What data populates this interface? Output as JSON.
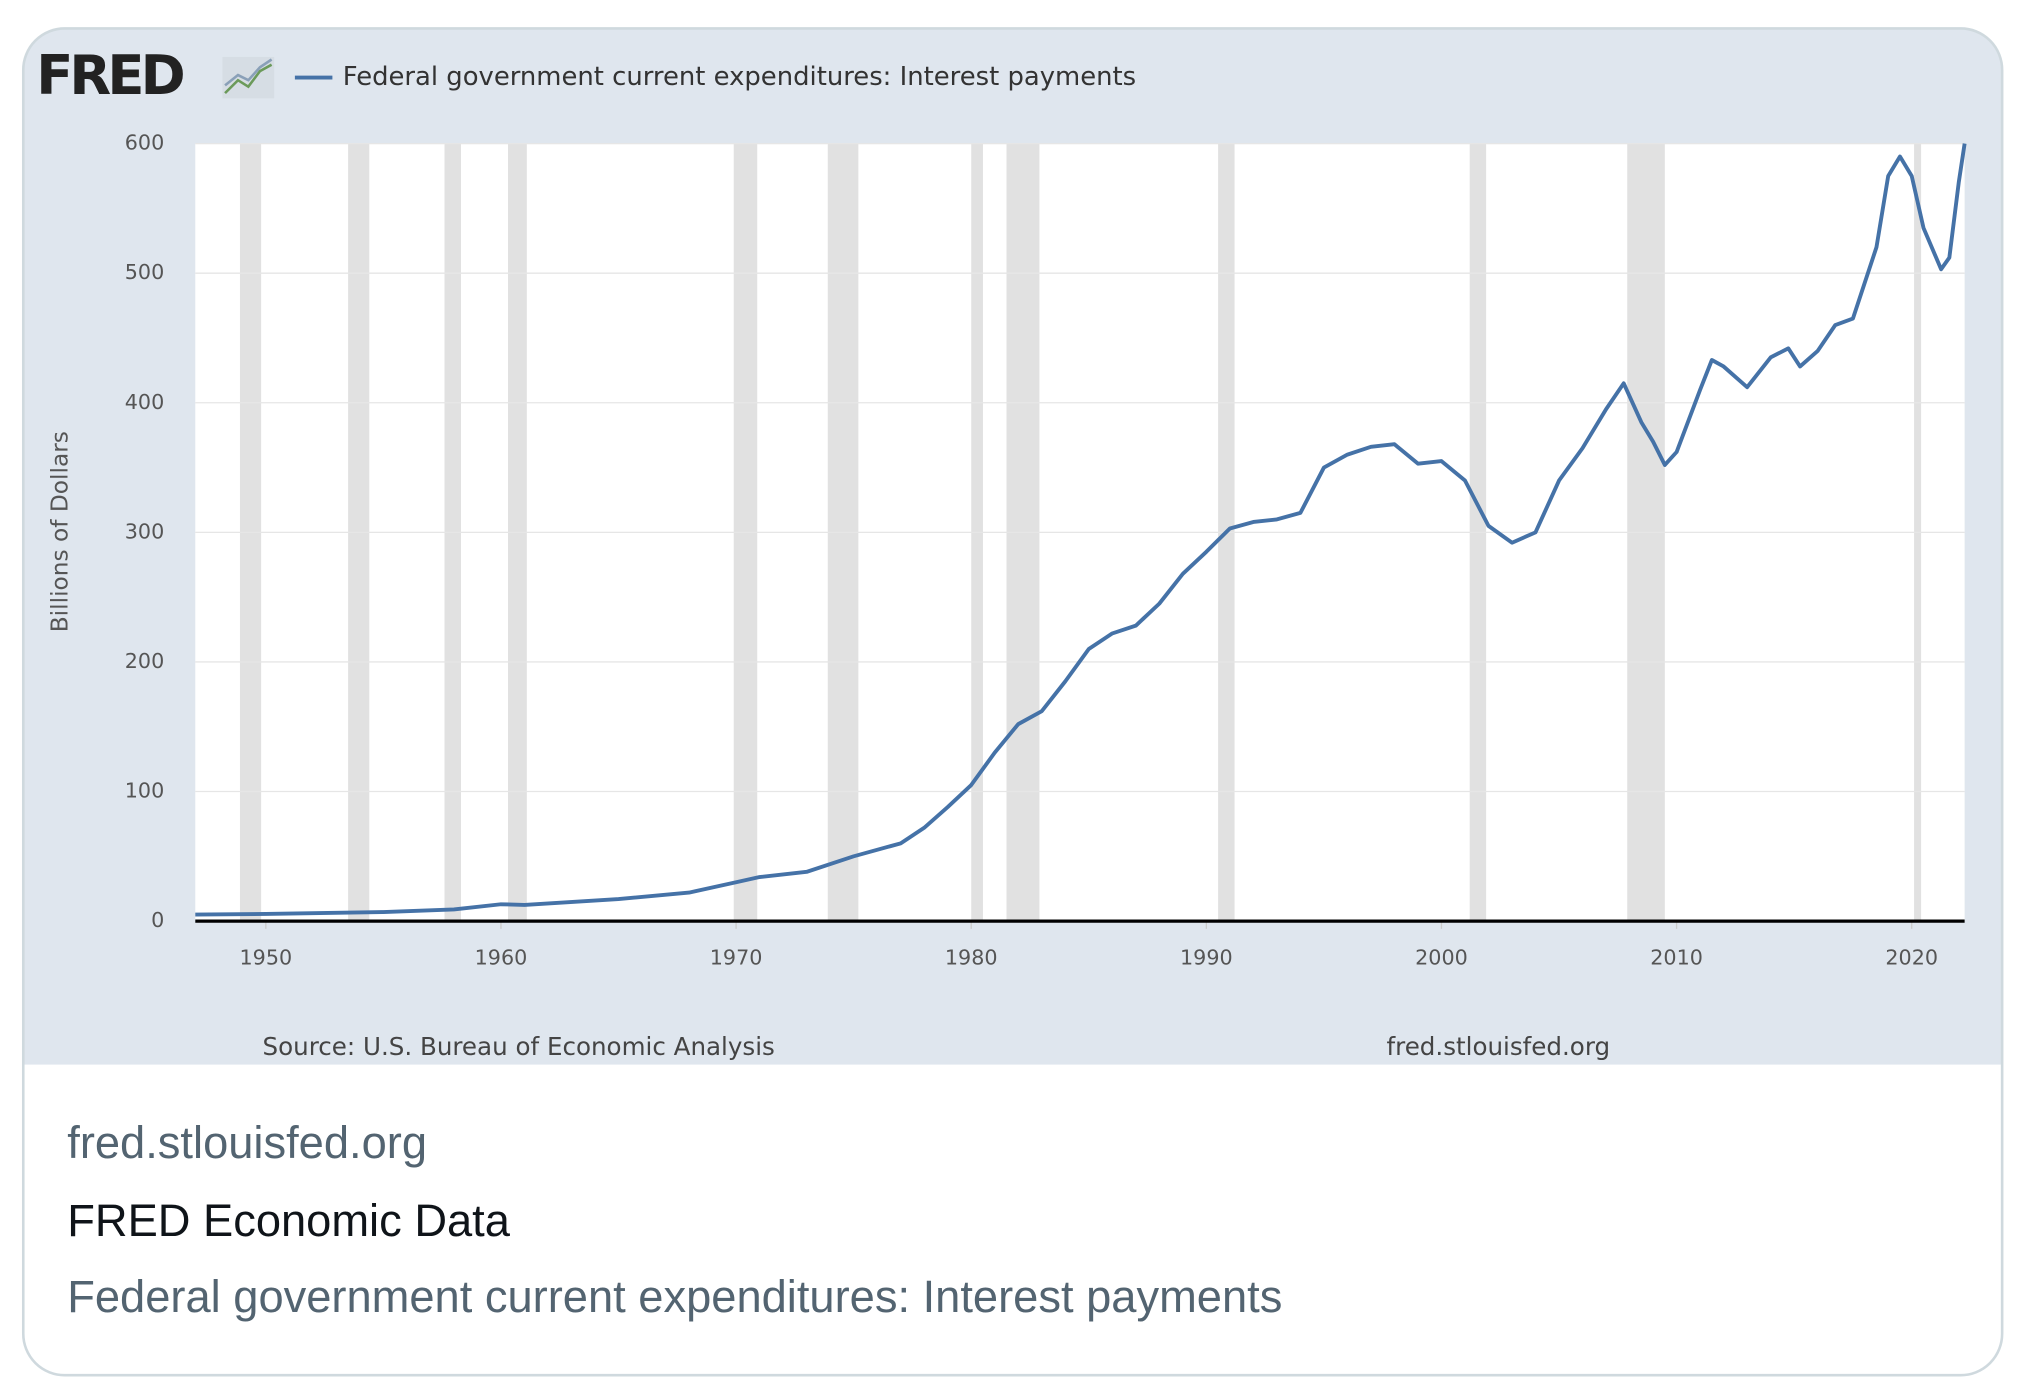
{
  "logo": "FRED",
  "chart_data": {
    "type": "line",
    "y_label": "Billions of Dollars",
    "source": "Source: U.S. Bureau of Economic Analysis",
    "watermark": "fred.stlouisfed.org",
    "x": [
      1947,
      1950,
      1955,
      1958,
      1960,
      1961,
      1965,
      1968,
      1970,
      1971,
      1973,
      1975,
      1977,
      1978,
      1979,
      1980,
      1981,
      1982,
      1983,
      1984,
      1985,
      1986,
      1987,
      1988,
      1989,
      1990,
      1991,
      1992,
      1993,
      1994,
      1995,
      1996,
      1997,
      1998,
      1999,
      2000,
      2001,
      2002,
      2003,
      2004,
      2005,
      2006,
      2007,
      2007.75,
      2008.5,
      2009,
      2009.5,
      2010,
      2011,
      2011.5,
      2012,
      2013,
      2014,
      2014.75,
      2015.25,
      2016,
      2016.75,
      2017.5,
      2018.5,
      2019,
      2019.5,
      2020,
      2020.5,
      2021.25,
      2021.6,
      2022,
      2022.25
    ],
    "series": [
      {
        "name": "Federal government current expenditures: Interest payments",
        "color": "#4572a7",
        "values": [
          5,
          5.5,
          7,
          9,
          13,
          12.5,
          17,
          22,
          30,
          34,
          38,
          50,
          60,
          72,
          88,
          105,
          130,
          152,
          162,
          185,
          210,
          222,
          228,
          245,
          268,
          285,
          303,
          308,
          310,
          315,
          350,
          360,
          366,
          368,
          353,
          355,
          340,
          305,
          292,
          300,
          340,
          365,
          395,
          415,
          385,
          370,
          352,
          362,
          410,
          433,
          428,
          412,
          435,
          442,
          428,
          440,
          460,
          465,
          520,
          575,
          590,
          575,
          535,
          503,
          512,
          570,
          600
        ]
      }
    ],
    "recessions": [
      [
        1948.9,
        1949.8
      ],
      [
        1953.5,
        1954.4
      ],
      [
        1957.6,
        1958.3
      ],
      [
        1960.3,
        1961.1
      ],
      [
        1969.9,
        1970.9
      ],
      [
        1973.9,
        1975.2
      ],
      [
        1980.0,
        1980.5
      ],
      [
        1981.5,
        1982.9
      ],
      [
        1990.5,
        1991.2
      ],
      [
        2001.2,
        2001.9
      ],
      [
        2007.9,
        2009.5
      ],
      [
        2020.1,
        2020.4
      ]
    ],
    "recession_color": "#e1e1e1",
    "xlim": [
      1947,
      2022.25
    ],
    "ylim": [
      0,
      600
    ],
    "xticks": [
      1950,
      1960,
      1970,
      1980,
      1990,
      2000,
      2010,
      2020
    ],
    "yticks": [
      0,
      100,
      200,
      300,
      400,
      500,
      600
    ],
    "grid": true
  },
  "card": {
    "domain": "fred.stlouisfed.org",
    "site": "FRED Economic Data",
    "description": "Federal government current expenditures: Interest payments"
  }
}
